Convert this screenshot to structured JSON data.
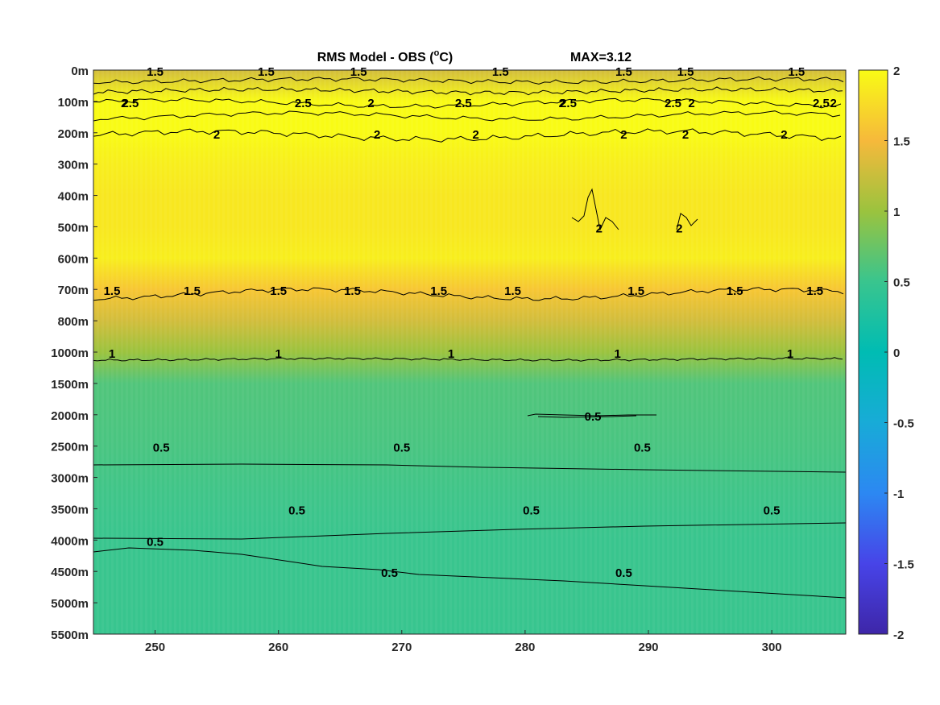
{
  "chart_data": {
    "type": "heatmap",
    "title": "RMS Model - OBS (",
    "title_unit": "o",
    "title_unit_suffix": "C)",
    "max_label": "MAX=3.12",
    "x_ticks": [
      "250",
      "260",
      "270",
      "280",
      "290",
      "300"
    ],
    "x_tick_values": [
      250,
      260,
      270,
      280,
      290,
      300
    ],
    "xlim": [
      245,
      306
    ],
    "y_ticks": [
      "0m",
      "100m",
      "200m",
      "300m",
      "400m",
      "500m",
      "600m",
      "700m",
      "800m",
      "1000m",
      "1500m",
      "2000m",
      "2500m",
      "3000m",
      "3500m",
      "4000m",
      "4500m",
      "5000m",
      "5500m"
    ],
    "colorbar": {
      "ticks": [
        "2",
        "1.5",
        "1",
        "0.5",
        "0",
        "-0.5",
        "-1",
        "-1.5",
        "-2"
      ],
      "range": [
        -2,
        2
      ],
      "colormap": "parula"
    },
    "depth_profile": {
      "depth_levels": [
        "0m",
        "100m",
        "200m",
        "300m",
        "400m",
        "500m",
        "600m",
        "700m",
        "800m",
        "1000m",
        "1500m",
        "2000m",
        "2500m",
        "3000m",
        "3500m",
        "4000m",
        "4500m",
        "5000m",
        "5500m"
      ],
      "values": [
        1.3,
        2.6,
        2.05,
        1.9,
        1.85,
        1.85,
        1.9,
        1.6,
        1.3,
        1.0,
        0.62,
        0.6,
        0.58,
        0.55,
        0.52,
        0.5,
        0.5,
        0.5,
        0.48
      ]
    },
    "contour_labels": [
      {
        "text": "1.5",
        "x": 250,
        "depth": "0m"
      },
      {
        "text": "2",
        "x": 247.5,
        "depth": "100m"
      },
      {
        "text": "1.5",
        "x": 259,
        "depth": "0m"
      },
      {
        "text": "1.5",
        "x": 266.5,
        "depth": "0m"
      },
      {
        "text": "2",
        "x": 267.5,
        "depth": "100m"
      },
      {
        "text": "1.5",
        "x": 278,
        "depth": "0m"
      },
      {
        "text": "2",
        "x": 283,
        "depth": "100m"
      },
      {
        "text": "1.5",
        "x": 288,
        "depth": "0m"
      },
      {
        "text": "1.5",
        "x": 293,
        "depth": "0m"
      },
      {
        "text": "2",
        "x": 293.5,
        "depth": "100m"
      },
      {
        "text": "1.5",
        "x": 302,
        "depth": "0m"
      },
      {
        "text": "2",
        "x": 305,
        "depth": "100m"
      },
      {
        "text": "2.5",
        "x": 248,
        "depth": "100m"
      },
      {
        "text": "2.5",
        "x": 262,
        "depth": "100m"
      },
      {
        "text": "2.5",
        "x": 275,
        "depth": "100m"
      },
      {
        "text": "2.5",
        "x": 283.5,
        "depth": "100m"
      },
      {
        "text": "2.5",
        "x": 292,
        "depth": "100m"
      },
      {
        "text": "2.5",
        "x": 304,
        "depth": "100m"
      },
      {
        "text": "2",
        "x": 255,
        "depth": "200m"
      },
      {
        "text": "2",
        "x": 268,
        "depth": "200m"
      },
      {
        "text": "2",
        "x": 276,
        "depth": "200m"
      },
      {
        "text": "2",
        "x": 288,
        "depth": "200m"
      },
      {
        "text": "2",
        "x": 293,
        "depth": "200m"
      },
      {
        "text": "2",
        "x": 301,
        "depth": "200m"
      },
      {
        "text": "2",
        "x": 286,
        "depth": "500m"
      },
      {
        "text": "2",
        "x": 292.5,
        "depth": "500m"
      },
      {
        "text": "1.5",
        "x": 246.5,
        "depth": "700m"
      },
      {
        "text": "1.5",
        "x": 253,
        "depth": "700m"
      },
      {
        "text": "1.5",
        "x": 260,
        "depth": "700m"
      },
      {
        "text": "1.5",
        "x": 266,
        "depth": "700m"
      },
      {
        "text": "1.5",
        "x": 273,
        "depth": "700m"
      },
      {
        "text": "1.5",
        "x": 279,
        "depth": "700m"
      },
      {
        "text": "1.5",
        "x": 289,
        "depth": "700m"
      },
      {
        "text": "1.5",
        "x": 297,
        "depth": "700m"
      },
      {
        "text": "1.5",
        "x": 303.5,
        "depth": "700m"
      },
      {
        "text": "1",
        "x": 246.5,
        "depth": "1000m"
      },
      {
        "text": "1",
        "x": 260,
        "depth": "1000m"
      },
      {
        "text": "1",
        "x": 274,
        "depth": "1000m"
      },
      {
        "text": "1",
        "x": 287.5,
        "depth": "1000m"
      },
      {
        "text": "1",
        "x": 301.5,
        "depth": "1000m"
      },
      {
        "text": "0.5",
        "x": 285.5,
        "depth": "2000m"
      },
      {
        "text": "0.5",
        "x": 250.5,
        "depth": "2500m"
      },
      {
        "text": "0.5",
        "x": 270,
        "depth": "2500m"
      },
      {
        "text": "0.5",
        "x": 289.5,
        "depth": "2500m"
      },
      {
        "text": "0.5",
        "x": 261.5,
        "depth": "3500m"
      },
      {
        "text": "0.5",
        "x": 280.5,
        "depth": "3500m"
      },
      {
        "text": "0.5",
        "x": 300,
        "depth": "3500m"
      },
      {
        "text": "0.5",
        "x": 250,
        "depth": "4000m"
      },
      {
        "text": "0.5",
        "x": 269,
        "depth": "4500m"
      },
      {
        "text": "0.5",
        "x": 288,
        "depth": "4500m"
      }
    ]
  }
}
